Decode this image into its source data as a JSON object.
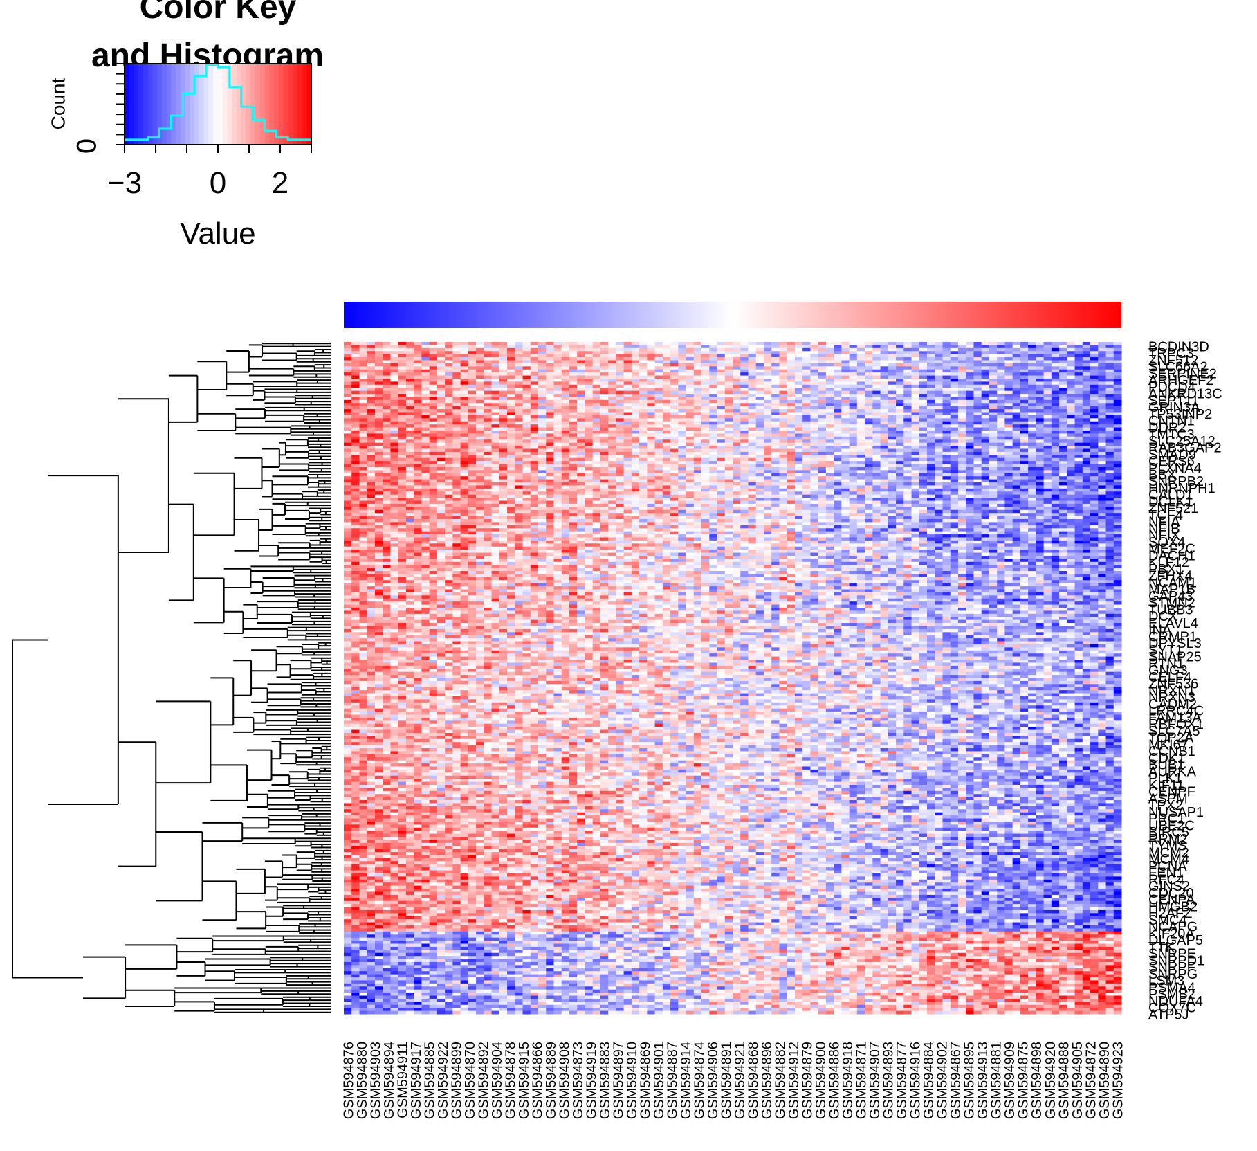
{
  "chart_data": {
    "type": "heatmap",
    "key": {
      "title_line1": "Color Key",
      "title_line2": "and Histogram",
      "xlabel": "Value",
      "ylabel": "Count",
      "xlim": [
        -3,
        3
      ],
      "xticks": [
        "−3",
        "0",
        "2"
      ],
      "xtick_values": [
        -3,
        0,
        2
      ],
      "ytick": "0",
      "low_color": "#0000FF",
      "mid_color": "#FFFFFF",
      "high_color": "#FF0000",
      "histogram_color": "#00FFFF",
      "histogram_counts": [
        1,
        1,
        2,
        6,
        12,
        22,
        30,
        35,
        34,
        25,
        16,
        10,
        5,
        2,
        1,
        1
      ]
    },
    "heatmap": {
      "n_rows": 220,
      "n_cols": 100,
      "pattern": "high values (red) upper-left, low values (blue) right columns; lowest rows reverse to low-left / high-right",
      "row_dendrogram": true,
      "column_color_bar": "blue to red gradient across columns"
    },
    "row_labels": [
      "BCDIN3D",
      "TRPC3",
      "ZNF512",
      "SLC66A2",
      "SERPINE2",
      "ARHGEF2",
      "PDCD4",
      "ANKRD13C",
      "SEPT11",
      "GRIN3A",
      "TP53INP2",
      "CNTN1",
      "DDR2",
      "TMTC3",
      "SLC25A12",
      "RAB3GAP2",
      "SMAD9",
      "CERS6",
      "PLXNA4",
      "BBX",
      "SNRPB2",
      "HNRNPH1",
      "CALD1",
      "DCLK1",
      "ZNF521",
      "TCF4",
      "NFIA",
      "NFIB",
      "NFIX",
      "SOX4",
      "MEF2C",
      "DACH1",
      "KLF12",
      "PBX1",
      "ZFHX4",
      "NCAM1",
      "MAP1B",
      "GAP43",
      "STMN2",
      "TUBB3",
      "DCX",
      "ELAVL4",
      "INA",
      "CRMP1",
      "DPYSL3",
      "SYT1",
      "SNAP25",
      "RTN1",
      "GNG3",
      "CELF4",
      "ZNF536",
      "NRXN1",
      "NRXN3",
      "CADM2",
      "LRRC4C",
      "FAM13A",
      "RBFOX1",
      "SLC7A5",
      "TOP2A",
      "MKI67",
      "CCNB1",
      "CDK1",
      "BUB1",
      "AURKA",
      "PLK1",
      "KIF11",
      "CENPF",
      "ASPM",
      "TPX2",
      "NUSAP1",
      "PRC1",
      "UBE2C",
      "BIRC5",
      "RRM2",
      "TYMS",
      "MCM2",
      "MCM4",
      "PCNA",
      "FEN1",
      "RFC4",
      "GINS2",
      "CDC20",
      "CENPA",
      "HMGB2",
      "H2AFZ",
      "SMC4",
      "NCAPG",
      "KIF20A",
      "DLGAP5",
      "TTK",
      "SNRPE",
      "SNRPD1",
      "SNRPF",
      "SNRPG",
      "LSM3",
      "PSMA4",
      "PSMB2",
      "NDUFA4",
      "COX7C",
      "ATP5J"
    ],
    "column_labels": [
      "GSM594876",
      "GSM594880",
      "GSM594903",
      "GSM594894",
      "GSM594911",
      "GSM594917",
      "GSM594885",
      "GSM594922",
      "GSM594899",
      "GSM594870",
      "GSM594892",
      "GSM594904",
      "GSM594878",
      "GSM594915",
      "GSM594866",
      "GSM594889",
      "GSM594908",
      "GSM594873",
      "GSM594919",
      "GSM594883",
      "GSM594897",
      "GSM594910",
      "GSM594869",
      "GSM594901",
      "GSM594887",
      "GSM594914",
      "GSM594874",
      "GSM594906",
      "GSM594891",
      "GSM594921",
      "GSM594868",
      "GSM594896",
      "GSM594882",
      "GSM594912",
      "GSM594879",
      "GSM594900",
      "GSM594886",
      "GSM594918",
      "GSM594871",
      "GSM594907",
      "GSM594893",
      "GSM594877",
      "GSM594916",
      "GSM594884",
      "GSM594902",
      "GSM594867",
      "GSM594895",
      "GSM594913",
      "GSM594881",
      "GSM594909",
      "GSM594875",
      "GSM594898",
      "GSM594920",
      "GSM594888",
      "GSM594905",
      "GSM594872",
      "GSM594890",
      "GSM594923"
    ]
  }
}
